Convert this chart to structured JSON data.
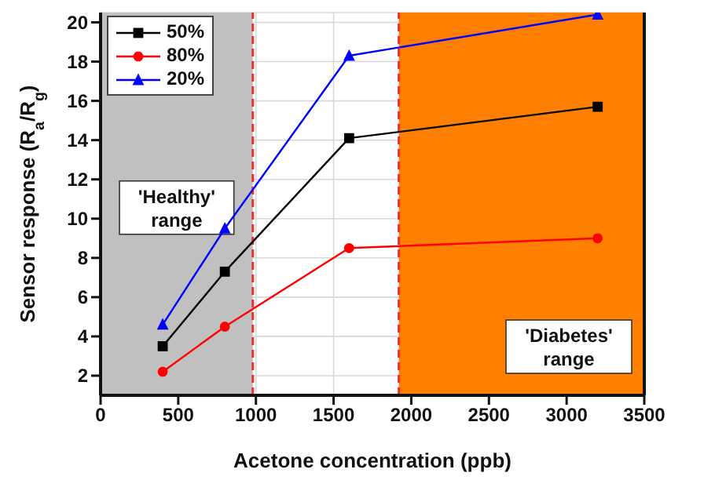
{
  "chart_data": {
    "type": "line",
    "xlabel": "Acetone concentration (ppb)",
    "ylabel": "Sensor response (R$_{a}$/R$_{g}$)",
    "x": [
      400,
      800,
      1600,
      3200
    ],
    "series": [
      {
        "name": "50%",
        "color": "#000000",
        "values": [
          3.5,
          7.3,
          14.1,
          15.7
        ],
        "marker": "square"
      },
      {
        "name": "80%",
        "color": "#ff0000",
        "values": [
          2.2,
          4.5,
          8.5,
          9.0
        ],
        "marker": "circle"
      },
      {
        "name": "20%",
        "color": "#0000ff",
        "values": [
          4.6,
          9.5,
          18.3,
          20.4
        ],
        "marker": "triangle"
      }
    ],
    "xlim": [
      0,
      3500
    ],
    "xticks": [
      0,
      500,
      1000,
      1500,
      2000,
      2500,
      3000,
      3500
    ],
    "ylim": [
      1,
      20.5
    ],
    "yticks": [
      2,
      4,
      6,
      8,
      10,
      12,
      14,
      16,
      18,
      20
    ],
    "bands": [
      {
        "axis": "x",
        "from": 0,
        "to": 980,
        "label": "'Healthy' range",
        "color": "#c0c0c0"
      },
      {
        "axis": "x",
        "from": 1920,
        "to": 3500,
        "label": "'Diabetes' range",
        "color": "#ff8000"
      }
    ],
    "ref_lines": [
      {
        "axis": "x",
        "value": 980,
        "color": "#e83030",
        "line_style": "dashed"
      },
      {
        "axis": "x",
        "value": 1920,
        "color": "#e83030",
        "line_style": "dashed"
      }
    ],
    "grid": true,
    "legend": "top left"
  }
}
